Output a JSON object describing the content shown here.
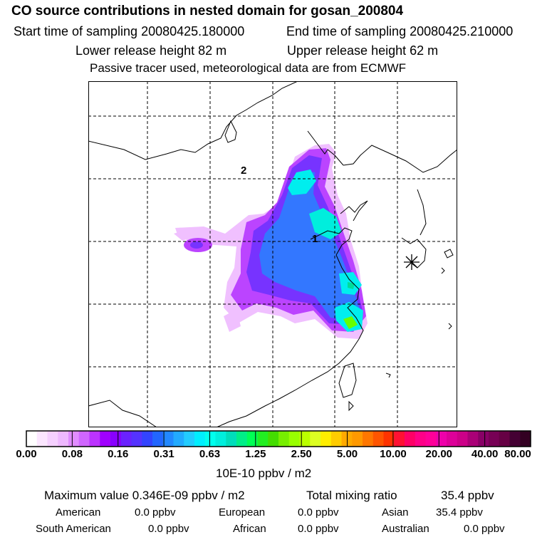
{
  "header": {
    "title": "CO  source contributions in nested domain for gosan_200804",
    "start": "Start time of sampling 20080425.180000",
    "end": "End time of sampling 20080425.210000",
    "lower": "Lower release height   82 m",
    "upper": "Upper release height   62 m",
    "note": "Passive tracer used, meteorological data are from ECMWF"
  },
  "map": {
    "label_1": "1",
    "label_2": "2",
    "receptor_icon": "asterisk-icon",
    "plume_colors": [
      "#f0c0ff",
      "#dd66ff",
      "#aa22ff",
      "#7733ff",
      "#3366ff",
      "#2299ff",
      "#00eeee",
      "#00dd99",
      "#66ff00",
      "#ccff00"
    ]
  },
  "colorbar": {
    "ticks": [
      "0.00",
      "0.08",
      "0.16",
      "0.31",
      "0.63",
      "1.25",
      "2.50",
      "5.00",
      "10.00",
      "20.00",
      "40.00",
      "80.00"
    ],
    "unit": "10E-10 ppbv / m2",
    "colors": [
      "#ffffff",
      "#fbe6ff",
      "#f5d0ff",
      "#eeb8ff",
      "#e08cff",
      "#d066ff",
      "#bb33ff",
      "#a000ff",
      "#8800ff",
      "#6a22ff",
      "#5533ff",
      "#3344ff",
      "#2266ff",
      "#2288ff",
      "#22aaff",
      "#22ccff",
      "#00eeff",
      "#00ffee",
      "#00eedd",
      "#00ddbb",
      "#00ee88",
      "#00ff55",
      "#22ee22",
      "#44dd00",
      "#77ee00",
      "#99ff00",
      "#bbff00",
      "#ddff22",
      "#ffee00",
      "#ffcc00",
      "#ffaa00",
      "#ff9900",
      "#ff7700",
      "#ff5500",
      "#ff3300",
      "#ff1133",
      "#ff0066",
      "#ff0088",
      "#ff0099",
      "#ee00aa",
      "#dd0099",
      "#cc0088",
      "#aa0077",
      "#880066",
      "#770055",
      "#660044",
      "#440033",
      "#330022"
    ]
  },
  "stats": {
    "max": "Maximum value  0.346E-09 ppbv / m2",
    "total_label": "Total mixing ratio",
    "total_value": "35.4 ppbv",
    "american_label": "American",
    "american_value": "0.0 ppbv",
    "european_label": "European",
    "european_value": "0.0 ppbv",
    "asian_label": "Asian",
    "asian_value": "35.4 ppbv",
    "south_american_label": "South American",
    "south_american_value": "0.0 ppbv",
    "african_label": "African",
    "african_value": "0.0 ppbv",
    "australian_label": "Australian",
    "australian_value": "0.0 ppbv"
  }
}
